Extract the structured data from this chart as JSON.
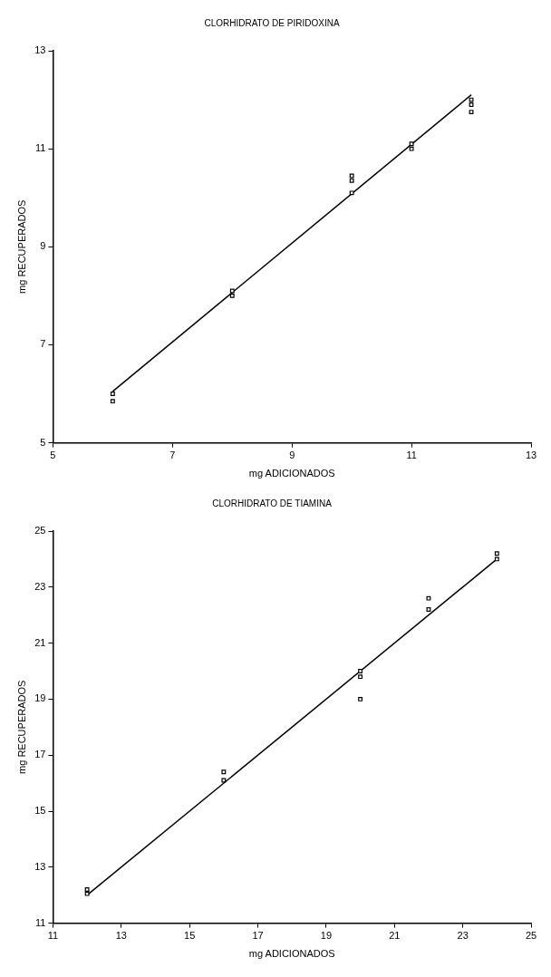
{
  "chart_data": [
    {
      "type": "scatter",
      "title": "CLORHIDRATO DE PIRIDOXINA",
      "xlabel": "mg ADICIONADOS",
      "ylabel": "mg RECUPERADOS",
      "xlim": [
        5,
        13
      ],
      "xticks": [
        5,
        7,
        9,
        11,
        13
      ],
      "ylim": [
        5,
        13
      ],
      "yticks": [
        5,
        7,
        9,
        11,
        13
      ],
      "series": [
        {
          "type": "scatter",
          "color": "#000000",
          "marker": "square",
          "x": [
            6,
            6,
            8,
            8,
            10,
            10,
            10,
            11,
            11,
            12,
            12,
            12
          ],
          "values": [
            6.0,
            5.85,
            8.1,
            8.0,
            10.45,
            10.35,
            10.1,
            11.1,
            11.0,
            12.0,
            11.9,
            11.75
          ]
        },
        {
          "type": "line",
          "color": "#000000",
          "marker": "none",
          "x": [
            6,
            12
          ],
          "values": [
            6.05,
            12.1
          ]
        }
      ]
    },
    {
      "type": "scatter",
      "title": "CLORHIDRATO DE TIAMINA",
      "xlabel": "mg ADICIONADOS",
      "ylabel": "mg RECUPERADOS",
      "xlim": [
        11,
        25
      ],
      "xticks": [
        11,
        13,
        15,
        17,
        19,
        21,
        23,
        25
      ],
      "ylim": [
        11,
        25
      ],
      "yticks": [
        11,
        13,
        15,
        17,
        19,
        21,
        23,
        25
      ],
      "series": [
        {
          "type": "scatter",
          "color": "#000000",
          "marker": "square",
          "x": [
            12,
            12,
            16,
            16,
            20,
            20,
            20,
            22,
            22,
            24,
            24
          ],
          "values": [
            12.2,
            12.05,
            16.4,
            16.1,
            20.0,
            19.8,
            19.0,
            22.6,
            22.2,
            24.2,
            24.0
          ]
        },
        {
          "type": "line",
          "color": "#000000",
          "marker": "none",
          "x": [
            12,
            24
          ],
          "values": [
            12.0,
            24.0
          ]
        }
      ]
    }
  ]
}
